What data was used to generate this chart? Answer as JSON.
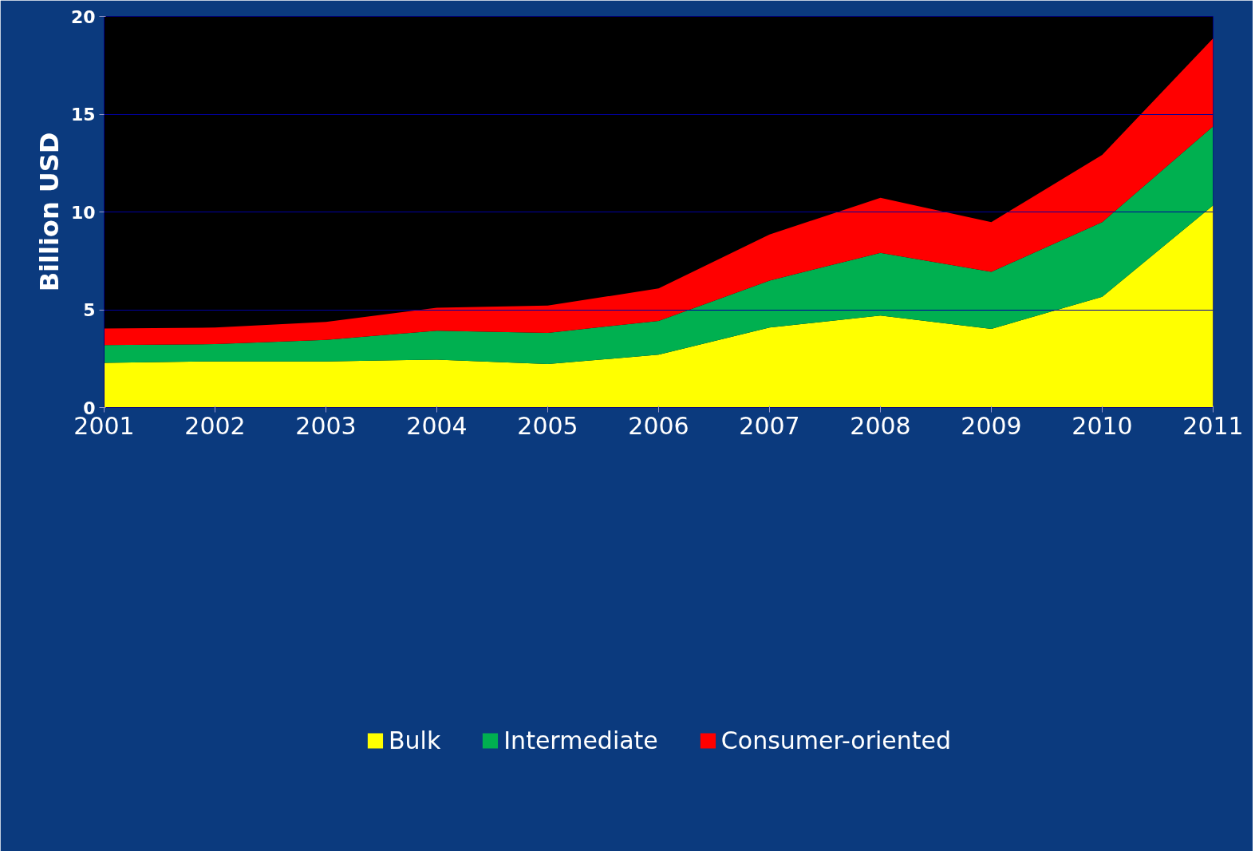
{
  "chart_data": {
    "type": "area",
    "stacked": true,
    "ylabel": "Billion USD",
    "x": [
      2001,
      2002,
      2003,
      2004,
      2005,
      2006,
      2007,
      2008,
      2009,
      2010,
      2011
    ],
    "xlim": [
      2001,
      2011
    ],
    "xticks": [
      2001,
      2002,
      2003,
      2004,
      2005,
      2006,
      2007,
      2008,
      2009,
      2010,
      2011
    ],
    "ylim": [
      0,
      20
    ],
    "yticks": [
      0,
      5,
      10,
      15,
      20
    ],
    "grid": "y",
    "legend": "bottom",
    "series": [
      {
        "name": "Bulk",
        "color": "#ffff00",
        "values": [
          2.29,
          2.36,
          2.36,
          2.45,
          2.22,
          2.7,
          4.09,
          4.7,
          4.02,
          5.66,
          10.34
        ]
      },
      {
        "name": "Intermediate",
        "color": "#00b050",
        "values": [
          0.9,
          0.88,
          1.1,
          1.48,
          1.6,
          1.73,
          2.4,
          3.21,
          2.92,
          3.82,
          4.04
        ]
      },
      {
        "name": "Consumer-oriented",
        "color": "#ff0000",
        "values": [
          0.85,
          0.85,
          0.92,
          1.17,
          1.39,
          1.66,
          2.36,
          2.81,
          2.54,
          3.44,
          4.5
        ]
      }
    ]
  }
}
